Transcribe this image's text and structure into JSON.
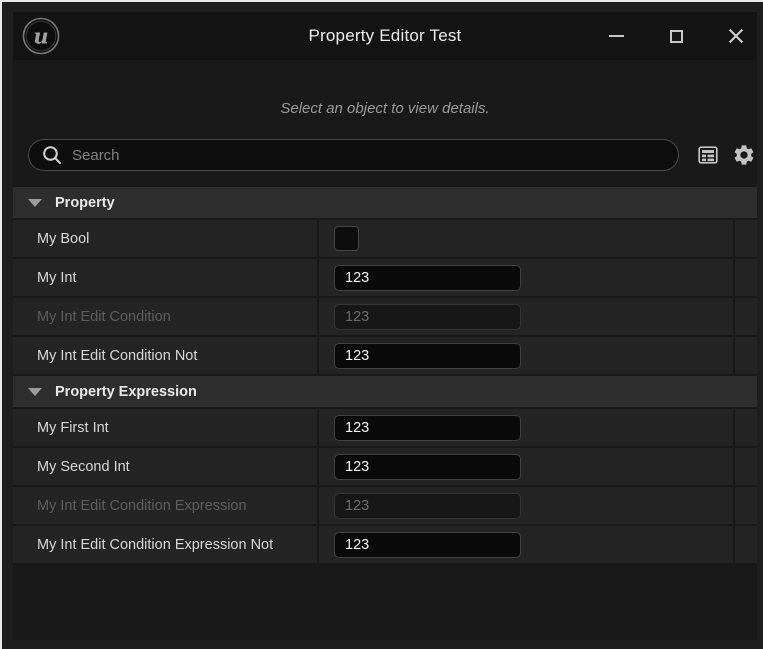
{
  "window": {
    "title": "Property Editor Test",
    "controls": [
      {
        "name": "minimize"
      },
      {
        "name": "maximize"
      },
      {
        "name": "close"
      }
    ],
    "logo_icon": "unreal-engine-logo"
  },
  "details_panel": {
    "empty_hint": "Select an object to view details.",
    "search": {
      "placeholder": "Search",
      "value": ""
    },
    "toolbar_icons": [
      "display-filters-icon",
      "settings-gear-icon"
    ],
    "sections": [
      {
        "label": "Property",
        "expanded": true,
        "rows": [
          {
            "label": "My Bool",
            "type": "checkbox",
            "checked": false,
            "disabled": false
          },
          {
            "label": "My Int",
            "type": "text",
            "value": "123",
            "disabled": false
          },
          {
            "label": "My Int Edit Condition",
            "type": "text",
            "value": "123",
            "disabled": true
          },
          {
            "label": "My Int Edit Condition Not",
            "type": "text",
            "value": "123",
            "disabled": false
          }
        ]
      },
      {
        "label": "Property Expression",
        "expanded": true,
        "rows": [
          {
            "label": "My First Int",
            "type": "text",
            "value": "123",
            "disabled": false
          },
          {
            "label": "My Second Int",
            "type": "text",
            "value": "123",
            "disabled": false
          },
          {
            "label": "My Int Edit Condition Expression",
            "type": "text",
            "value": "123",
            "disabled": true
          },
          {
            "label": "My Int Edit Condition Expression Not",
            "type": "text",
            "value": "123",
            "disabled": false
          }
        ]
      }
    ]
  },
  "colors": {
    "window_frame": "#1e1e1e",
    "titlebar_bg": "#141414",
    "content_bg": "#191919",
    "category_header_bg": "#2e2e2e",
    "row_bg": "#242424",
    "input_bg": "#0a0a0a",
    "input_border": "#414141",
    "text": "#d8d8d8",
    "disabled_text": "#5e5e5e",
    "hint_text": "#9b9b9b"
  }
}
